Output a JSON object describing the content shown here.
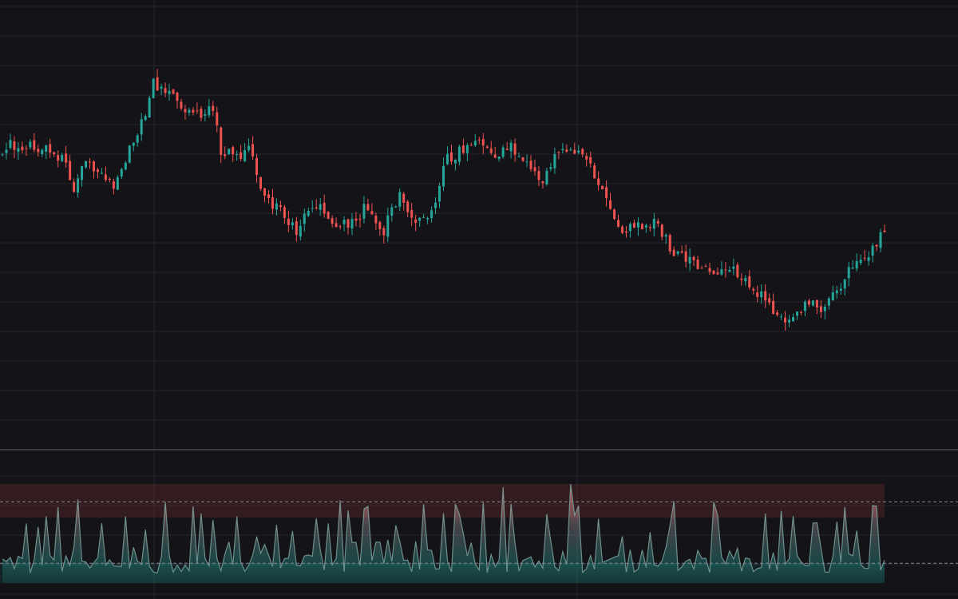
{
  "chart_data": [
    {
      "type": "candlestick",
      "title": "",
      "xlabel": "",
      "ylabel": "",
      "grid": true,
      "legend": "none",
      "ylim": [
        0,
        56
      ],
      "colors": {
        "up": "#26a69a",
        "down": "#ef5350",
        "background": "#131318",
        "grid": "#24242c"
      },
      "anchor_closes": [
        [
          0,
          37.6
        ],
        [
          4,
          38.4
        ],
        [
          8,
          37.6
        ],
        [
          12,
          37.8
        ],
        [
          16,
          35.6
        ],
        [
          18,
          32.8
        ],
        [
          20,
          36.0
        ],
        [
          24,
          35.0
        ],
        [
          28,
          32.6
        ],
        [
          32,
          37.6
        ],
        [
          36,
          42.4
        ],
        [
          38,
          46.0
        ],
        [
          42,
          45.4
        ],
        [
          46,
          42.8
        ],
        [
          50,
          41.6
        ],
        [
          53,
          43.0
        ],
        [
          55,
          37.4
        ],
        [
          60,
          36.2
        ],
        [
          62,
          38.0
        ],
        [
          66,
          30.8
        ],
        [
          70,
          30.0
        ],
        [
          74,
          27.0
        ],
        [
          76,
          29.6
        ],
        [
          80,
          29.8
        ],
        [
          84,
          27.8
        ],
        [
          88,
          28.2
        ],
        [
          91,
          29.8
        ],
        [
          96,
          27.2
        ],
        [
          100,
          31.6
        ],
        [
          104,
          28.4
        ],
        [
          108,
          29.6
        ],
        [
          112,
          36.4
        ],
        [
          116,
          37.6
        ],
        [
          120,
          38.0
        ],
        [
          124,
          36.4
        ],
        [
          128,
          38.0
        ],
        [
          132,
          36.0
        ],
        [
          136,
          33.6
        ],
        [
          138,
          35.8
        ],
        [
          142,
          37.8
        ],
        [
          146,
          36.6
        ],
        [
          150,
          33.6
        ],
        [
          152,
          30.6
        ],
        [
          156,
          26.8
        ],
        [
          160,
          28.0
        ],
        [
          164,
          28.0
        ],
        [
          166,
          26.6
        ],
        [
          170,
          23.8
        ],
        [
          174,
          22.8
        ],
        [
          178,
          21.4
        ],
        [
          182,
          22.8
        ],
        [
          186,
          21.4
        ],
        [
          190,
          19.2
        ],
        [
          194,
          16.4
        ],
        [
          198,
          15.6
        ],
        [
          202,
          17.4
        ],
        [
          206,
          17.2
        ],
        [
          210,
          19.4
        ],
        [
          214,
          22.8
        ],
        [
          218,
          24.2
        ],
        [
          222,
          27.0
        ]
      ],
      "candle_count": 223,
      "seed": 20250
    },
    {
      "type": "area",
      "title": "",
      "xlabel": "",
      "ylabel": "",
      "ylim": [
        0,
        100
      ],
      "upper_band": 100,
      "upper_level": 82,
      "lower_level": 20,
      "base": 0,
      "colors": {
        "high": "#ef5350",
        "mid": "#b0b0b0",
        "low": "#26a69a"
      },
      "seed": 9173
    }
  ]
}
